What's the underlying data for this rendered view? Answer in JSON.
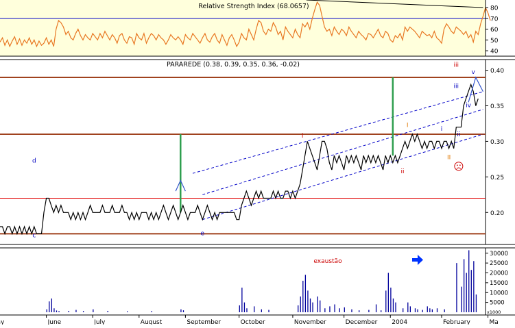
{
  "colors": {
    "rsi_bg": "#FFFFDC",
    "rsi_line": "#E87722",
    "price_line": "#000000",
    "channel": "#0000C8",
    "support_resistance": "#A0421E",
    "thin_red": "#E00000",
    "volume": "#00009C",
    "green_marker": "#2E9E4E",
    "arrow": "#0033FF",
    "annotation_red": "#CC0000",
    "annotation_orange": "#E07800",
    "annotation_blue": "#0000C0",
    "wave_blue": "#3355CC"
  },
  "chart_data": [
    {
      "type": "line",
      "panel": "rsi",
      "title": "Relative Strength Index (68.0657)",
      "ylim": [
        35,
        87
      ],
      "y_ticks": [
        40,
        50,
        60,
        70,
        80
      ],
      "reference_line": 70,
      "series": [
        {
          "values": [
            48,
            52,
            45,
            50,
            44,
            49,
            53,
            46,
            51,
            45,
            50,
            47,
            52,
            46,
            50,
            44,
            49,
            45,
            47,
            52,
            46,
            50,
            44,
            60,
            68,
            66,
            62,
            55,
            58,
            52,
            50,
            56,
            60,
            54,
            50,
            55,
            52,
            50,
            56,
            53,
            50,
            56,
            52,
            58,
            54,
            50,
            55,
            52,
            47,
            54,
            56,
            50,
            47,
            53,
            52,
            46,
            56,
            52,
            50,
            56,
            47,
            52,
            56,
            54,
            50,
            55,
            52,
            50,
            46,
            50,
            55,
            52,
            50,
            53,
            50,
            46,
            55,
            52,
            50,
            56,
            53,
            50,
            47,
            52,
            56,
            50,
            48,
            53,
            56,
            50,
            47,
            55,
            50,
            45,
            52,
            55,
            50,
            44,
            48,
            56,
            52,
            50,
            60,
            55,
            50,
            60,
            68,
            66,
            58,
            55,
            60,
            58,
            66,
            62,
            55,
            58,
            50,
            62,
            58,
            55,
            52,
            60,
            55,
            52,
            65,
            62,
            66,
            60,
            70,
            78,
            85,
            82,
            72,
            62,
            58,
            60,
            54,
            62,
            58,
            55,
            60,
            58,
            54,
            62,
            58,
            55,
            52,
            58,
            55,
            53,
            50,
            56,
            55,
            52,
            56,
            60,
            54,
            52,
            58,
            56,
            50,
            48,
            54,
            52,
            56,
            50,
            62,
            58,
            62,
            60,
            58,
            55,
            52,
            58,
            56,
            54,
            55,
            52,
            58,
            52,
            50,
            47,
            60,
            65,
            62,
            58,
            56,
            62,
            60,
            58,
            55,
            58,
            52,
            55,
            48,
            58,
            55,
            65,
            72,
            80,
            75,
            68
          ]
        }
      ],
      "trendline": [
        {
          "x": 0.5,
          "y": 87
        },
        {
          "x": 198,
          "y": 80
        }
      ]
    },
    {
      "type": "line",
      "panel": "price",
      "title": "PARAREDE (0.38, 0.39, 0.35, 0.36, -0.02)",
      "ylim": [
        0.155,
        0.415
      ],
      "y_ticks": [
        "0.20",
        "0.25",
        "0.30",
        "0.35",
        "0.40"
      ],
      "series": [
        {
          "values": [
            0.18,
            0.18,
            0.17,
            0.18,
            0.18,
            0.17,
            0.18,
            0.17,
            0.18,
            0.17,
            0.18,
            0.17,
            0.18,
            0.17,
            0.18,
            0.17,
            0.17,
            0.17,
            0.2,
            0.22,
            0.22,
            0.21,
            0.2,
            0.21,
            0.2,
            0.21,
            0.2,
            0.2,
            0.2,
            0.19,
            0.2,
            0.19,
            0.2,
            0.19,
            0.2,
            0.19,
            0.2,
            0.21,
            0.2,
            0.2,
            0.2,
            0.2,
            0.21,
            0.2,
            0.2,
            0.2,
            0.21,
            0.2,
            0.2,
            0.2,
            0.21,
            0.2,
            0.2,
            0.19,
            0.2,
            0.19,
            0.2,
            0.19,
            0.2,
            0.2,
            0.2,
            0.19,
            0.2,
            0.19,
            0.2,
            0.19,
            0.2,
            0.21,
            0.2,
            0.19,
            0.2,
            0.21,
            0.2,
            0.19,
            0.2,
            0.21,
            0.2,
            0.19,
            0.2,
            0.2,
            0.2,
            0.21,
            0.2,
            0.19,
            0.2,
            0.21,
            0.2,
            0.19,
            0.2,
            0.19,
            0.2,
            0.2,
            0.2,
            0.2,
            0.2,
            0.2,
            0.2,
            0.19,
            0.19,
            0.21,
            0.22,
            0.23,
            0.22,
            0.21,
            0.22,
            0.23,
            0.22,
            0.23,
            0.22,
            0.22,
            0.22,
            0.22,
            0.23,
            0.22,
            0.23,
            0.22,
            0.22,
            0.23,
            0.23,
            0.22,
            0.23,
            0.22,
            0.23,
            0.24,
            0.26,
            0.28,
            0.3,
            0.29,
            0.28,
            0.27,
            0.26,
            0.28,
            0.3,
            0.3,
            0.29,
            0.27,
            0.26,
            0.28,
            0.27,
            0.28,
            0.27,
            0.26,
            0.28,
            0.27,
            0.28,
            0.27,
            0.28,
            0.27,
            0.26,
            0.28,
            0.27,
            0.28,
            0.27,
            0.28,
            0.27,
            0.28,
            0.27,
            0.26,
            0.28,
            0.27,
            0.28,
            0.27,
            0.28,
            0.27,
            0.28,
            0.29,
            0.3,
            0.29,
            0.3,
            0.31,
            0.3,
            0.31,
            0.3,
            0.29,
            0.3,
            0.29,
            0.3,
            0.3,
            0.29,
            0.3,
            0.3,
            0.29,
            0.3,
            0.3,
            0.29,
            0.3,
            0.29,
            0.32,
            0.32,
            0.32,
            0.35,
            0.36,
            0.37,
            0.38,
            0.37,
            0.35,
            0.36
          ]
        }
      ],
      "horizontal_lines": [
        {
          "y": 0.39,
          "style": "thick"
        },
        {
          "y": 0.31,
          "style": "thick"
        },
        {
          "y": 0.22,
          "style": "thin"
        },
        {
          "y": 0.17,
          "style": "thick"
        }
      ],
      "channel_lines": [
        {
          "from": {
            "x": 79,
            "y": 0.255
          },
          "to": {
            "x": 198,
            "y": 0.37
          }
        },
        {
          "from": {
            "x": 83,
            "y": 0.225
          },
          "to": {
            "x": 198,
            "y": 0.345
          }
        },
        {
          "from": {
            "x": 83,
            "y": 0.19
          },
          "to": {
            "x": 198,
            "y": 0.31
          }
        }
      ],
      "vertical_markers": [
        {
          "x": 74,
          "y_from": 0.2,
          "y_to": 0.31
        },
        {
          "x": 161,
          "y_from": 0.28,
          "y_to": 0.39
        }
      ],
      "wave_labels": [
        {
          "text": "d",
          "x": 14,
          "y": 0.27,
          "color": "annotation_blue"
        },
        {
          "text": "c",
          "x": 14,
          "y": 0.165,
          "color": "annotation_blue"
        },
        {
          "text": "e",
          "x": 83,
          "y": 0.168,
          "color": "annotation_blue"
        },
        {
          "text": "i",
          "x": 124,
          "y": 0.305,
          "color": "annotation_red"
        },
        {
          "text": "ii",
          "x": 165,
          "y": 0.255,
          "color": "annotation_red"
        },
        {
          "text": "I",
          "x": 167,
          "y": 0.32,
          "color": "annotation_orange"
        },
        {
          "text": "II",
          "x": 184,
          "y": 0.275,
          "color": "annotation_orange"
        },
        {
          "text": "i",
          "x": 181,
          "y": 0.315,
          "color": "annotation_blue"
        },
        {
          "text": "ii",
          "x": 188,
          "y": 0.307,
          "color": "annotation_blue"
        },
        {
          "text": "iii",
          "x": 187,
          "y": 0.405,
          "color": "annotation_red"
        },
        {
          "text": "iii",
          "x": 187,
          "y": 0.375,
          "color": "annotation_blue"
        },
        {
          "text": "iv",
          "x": 192,
          "y": 0.348,
          "color": "annotation_blue"
        },
        {
          "text": "v",
          "x": 194,
          "y": 0.395,
          "color": "annotation_blue"
        }
      ],
      "wave_projection": [
        {
          "x": 192,
          "y": 0.355
        },
        {
          "x": 195,
          "y": 0.39
        },
        {
          "x": 198,
          "y": 0.37
        }
      ],
      "cap_marker": [
        {
          "x": 72,
          "y": 0.23
        },
        {
          "x": 74,
          "y": 0.245
        },
        {
          "x": 76,
          "y": 0.23
        }
      ],
      "sad_face_marker": {
        "x": 188,
        "y": 0.265
      }
    },
    {
      "type": "bar",
      "panel": "volume",
      "ylim": [
        0,
        32000
      ],
      "y_ticks": [
        "5000",
        "10000",
        "15000",
        "20000",
        "25000",
        "30000"
      ],
      "scale_label": "x1000",
      "annotation": "exaustão",
      "bars": [
        {
          "x": 19,
          "value": 1500
        },
        {
          "x": 20,
          "value": 5500
        },
        {
          "x": 21,
          "value": 7000
        },
        {
          "x": 22,
          "value": 2000
        },
        {
          "x": 23,
          "value": 900
        },
        {
          "x": 24,
          "value": 600
        },
        {
          "x": 28,
          "value": 700
        },
        {
          "x": 31,
          "value": 1200
        },
        {
          "x": 34,
          "value": 600
        },
        {
          "x": 38,
          "value": 1500
        },
        {
          "x": 44,
          "value": 700
        },
        {
          "x": 52,
          "value": 500
        },
        {
          "x": 62,
          "value": 600
        },
        {
          "x": 74,
          "value": 1500
        },
        {
          "x": 75,
          "value": 1000
        },
        {
          "x": 98,
          "value": 3500
        },
        {
          "x": 99,
          "value": 12500
        },
        {
          "x": 100,
          "value": 5000
        },
        {
          "x": 101,
          "value": 2000
        },
        {
          "x": 104,
          "value": 3000
        },
        {
          "x": 107,
          "value": 1500
        },
        {
          "x": 110,
          "value": 1200
        },
        {
          "x": 122,
          "value": 3500
        },
        {
          "x": 123,
          "value": 8000
        },
        {
          "x": 124,
          "value": 16000
        },
        {
          "x": 125,
          "value": 19000
        },
        {
          "x": 126,
          "value": 11000
        },
        {
          "x": 127,
          "value": 7000
        },
        {
          "x": 128,
          "value": 5000
        },
        {
          "x": 130,
          "value": 8000
        },
        {
          "x": 131,
          "value": 6000
        },
        {
          "x": 133,
          "value": 2000
        },
        {
          "x": 135,
          "value": 3000
        },
        {
          "x": 137,
          "value": 4000
        },
        {
          "x": 139,
          "value": 2000
        },
        {
          "x": 141,
          "value": 2500
        },
        {
          "x": 144,
          "value": 1500
        },
        {
          "x": 147,
          "value": 1000
        },
        {
          "x": 151,
          "value": 1200
        },
        {
          "x": 154,
          "value": 4000
        },
        {
          "x": 156,
          "value": 1000
        },
        {
          "x": 158,
          "value": 11000
        },
        {
          "x": 159,
          "value": 20000
        },
        {
          "x": 160,
          "value": 12500
        },
        {
          "x": 161,
          "value": 7000
        },
        {
          "x": 162,
          "value": 5000
        },
        {
          "x": 165,
          "value": 2000
        },
        {
          "x": 167,
          "value": 5000
        },
        {
          "x": 168,
          "value": 3000
        },
        {
          "x": 170,
          "value": 2000
        },
        {
          "x": 171,
          "value": 1500
        },
        {
          "x": 173,
          "value": 1200
        },
        {
          "x": 175,
          "value": 3000
        },
        {
          "x": 176,
          "value": 2000
        },
        {
          "x": 177,
          "value": 1500
        },
        {
          "x": 179,
          "value": 2000
        },
        {
          "x": 182,
          "value": 1500
        },
        {
          "x": 187,
          "value": 25000
        },
        {
          "x": 189,
          "value": 13000
        },
        {
          "x": 190,
          "value": 27000
        },
        {
          "x": 191,
          "value": 20000
        },
        {
          "x": 192,
          "value": 31500
        },
        {
          "x": 193,
          "value": 21500
        },
        {
          "x": 194,
          "value": 26000
        },
        {
          "x": 195,
          "value": 9000
        }
      ]
    }
  ],
  "x_axis": {
    "months": [
      {
        "label": "May",
        "x": -4
      },
      {
        "label": "June",
        "x": 19
      },
      {
        "label": "July",
        "x": 38
      },
      {
        "label": "August",
        "x": 57
      },
      {
        "label": "September",
        "x": 76
      },
      {
        "label": "October",
        "x": 98
      },
      {
        "label": "November",
        "x": 120
      },
      {
        "label": "December",
        "x": 141
      },
      {
        "label": "2004",
        "x": 160
      },
      {
        "label": "February",
        "x": 181
      },
      {
        "label": "Ma",
        "x": 200
      }
    ]
  }
}
